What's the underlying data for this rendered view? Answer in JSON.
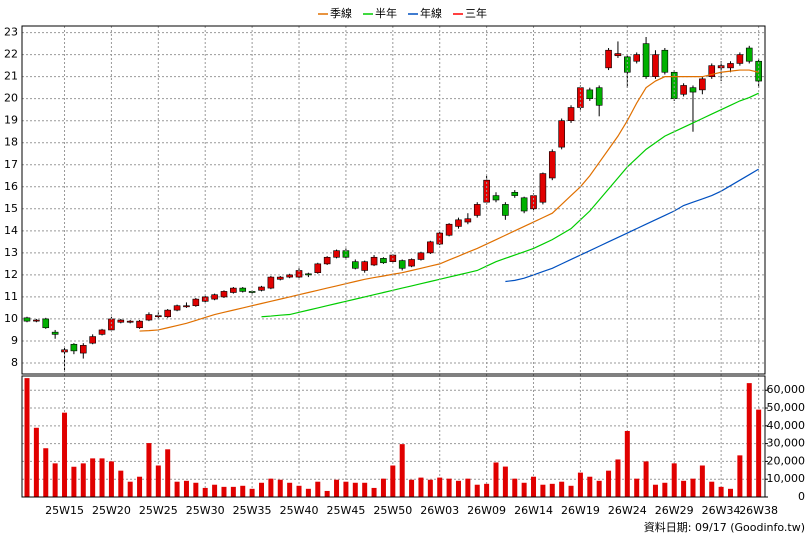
{
  "chart_data": [
    {
      "type": "candlestick",
      "open": [
        10.05,
        9.9,
        10.0,
        9.4,
        8.5,
        8.85,
        8.45,
        8.9,
        9.3,
        9.5,
        9.85,
        9.85,
        9.6,
        9.95,
        10.1,
        10.1,
        10.4,
        10.55,
        10.6,
        10.8,
        10.9,
        11.0,
        11.2,
        11.4,
        11.25,
        11.3,
        11.4,
        11.8,
        11.9,
        11.9,
        12.05,
        12.1,
        12.5,
        12.8,
        13.1,
        12.6,
        12.2,
        12.45,
        12.75,
        12.6,
        12.65,
        12.4,
        12.7,
        13.0,
        13.4,
        13.8,
        14.2,
        14.4,
        14.7,
        15.3,
        15.6,
        15.2,
        15.75,
        15.5,
        15.0,
        15.3,
        16.4,
        17.8,
        19.0,
        19.6,
        20.4,
        20.5,
        21.4,
        21.95,
        21.9,
        21.7,
        22.5,
        21.0,
        22.2,
        21.2,
        20.2,
        20.5,
        20.4,
        21.0,
        21.4,
        21.4,
        21.6,
        22.3,
        21.7
      ],
      "high": [
        10.1,
        10.0,
        10.05,
        9.5,
        8.7,
        8.9,
        8.9,
        9.3,
        9.55,
        10.1,
        10.0,
        9.95,
        9.95,
        10.3,
        10.3,
        10.45,
        10.65,
        10.75,
        10.95,
        11.05,
        11.15,
        11.3,
        11.45,
        11.45,
        11.3,
        11.5,
        11.95,
        11.95,
        12.05,
        12.3,
        12.1,
        12.55,
        12.85,
        13.15,
        13.2,
        12.7,
        12.65,
        12.9,
        12.8,
        12.95,
        12.7,
        12.75,
        13.05,
        13.55,
        13.95,
        14.35,
        14.6,
        14.8,
        15.3,
        16.5,
        15.75,
        15.3,
        15.85,
        15.55,
        15.7,
        16.65,
        17.7,
        19.1,
        19.7,
        20.6,
        20.5,
        20.6,
        22.3,
        22.6,
        22.0,
        22.1,
        22.8,
        22.2,
        22.3,
        21.3,
        20.7,
        20.6,
        21.0,
        21.6,
        21.7,
        21.7,
        22.1,
        22.4,
        21.8
      ],
      "low": [
        9.85,
        9.85,
        9.55,
        9.1,
        7.6,
        8.4,
        8.2,
        8.85,
        9.25,
        9.45,
        9.8,
        9.8,
        9.55,
        9.9,
        10.0,
        10.05,
        10.35,
        10.5,
        10.55,
        10.75,
        10.85,
        10.95,
        11.15,
        11.2,
        11.15,
        11.25,
        11.35,
        11.75,
        11.85,
        11.85,
        11.9,
        12.05,
        12.45,
        12.75,
        12.7,
        12.25,
        12.1,
        12.4,
        12.5,
        12.55,
        12.2,
        12.35,
        12.65,
        12.95,
        13.35,
        13.75,
        14.1,
        14.3,
        14.6,
        15.2,
        15.3,
        14.5,
        15.5,
        14.8,
        14.9,
        15.2,
        16.3,
        17.7,
        18.9,
        19.5,
        19.9,
        19.2,
        21.3,
        21.85,
        20.5,
        21.6,
        20.9,
        20.9,
        21.1,
        19.9,
        20.1,
        18.5,
        20.2,
        20.9,
        20.8,
        21.2,
        21.5,
        21.6,
        20.5
      ],
      "close": [
        9.9,
        9.95,
        9.6,
        9.3,
        8.6,
        8.55,
        8.8,
        9.2,
        9.5,
        10.0,
        9.95,
        9.9,
        9.9,
        10.2,
        10.15,
        10.4,
        10.6,
        10.6,
        10.9,
        11.0,
        11.1,
        11.25,
        11.4,
        11.25,
        11.2,
        11.45,
        11.9,
        11.9,
        12.0,
        12.2,
        12.0,
        12.5,
        12.8,
        13.1,
        12.8,
        12.3,
        12.6,
        12.8,
        12.55,
        12.9,
        12.3,
        12.7,
        13.0,
        13.5,
        13.9,
        14.3,
        14.5,
        14.55,
        15.2,
        16.3,
        15.4,
        14.7,
        15.6,
        14.9,
        15.6,
        16.6,
        17.6,
        19.0,
        19.6,
        20.5,
        20.0,
        19.7,
        22.2,
        22.05,
        21.2,
        22.0,
        21.0,
        22.0,
        21.2,
        20.0,
        20.6,
        20.3,
        20.9,
        21.5,
        21.5,
        21.6,
        22.0,
        21.7,
        20.8
      ],
      "up_color": "#e00000",
      "down_color": "#00b000",
      "series": [
        {
          "name": "季線",
          "color": "#e07000",
          "values": [
            null,
            null,
            null,
            null,
            null,
            null,
            null,
            null,
            null,
            null,
            null,
            null,
            9.45,
            9.47,
            9.5,
            9.6,
            9.7,
            9.8,
            9.93,
            10.07,
            10.2,
            10.3,
            10.4,
            10.5,
            10.6,
            10.7,
            10.8,
            10.9,
            11.0,
            11.1,
            11.2,
            11.3,
            11.4,
            11.5,
            11.6,
            11.7,
            11.8,
            11.88,
            11.95,
            12.03,
            12.1,
            12.2,
            12.3,
            12.4,
            12.5,
            12.68,
            12.85,
            13.03,
            13.2,
            13.4,
            13.6,
            13.8,
            14.0,
            14.2,
            14.4,
            14.6,
            14.8,
            15.2,
            15.6,
            16.0,
            16.5,
            17.1,
            17.7,
            18.3,
            19.0,
            19.8,
            20.5,
            20.8,
            21.0,
            21.0,
            21.0,
            21.0,
            21.0,
            21.1,
            21.2,
            21.25,
            21.3,
            21.3,
            21.2
          ]
        },
        {
          "name": "半年",
          "color": "#00cc00",
          "values": [
            null,
            null,
            null,
            null,
            null,
            null,
            null,
            null,
            null,
            null,
            null,
            null,
            null,
            null,
            null,
            null,
            null,
            null,
            null,
            null,
            null,
            null,
            null,
            null,
            null,
            10.1,
            10.13,
            10.17,
            10.2,
            10.3,
            10.4,
            10.5,
            10.6,
            10.7,
            10.8,
            10.9,
            11.0,
            11.1,
            11.2,
            11.3,
            11.4,
            11.5,
            11.6,
            11.7,
            11.8,
            11.9,
            12.0,
            12.1,
            12.2,
            12.4,
            12.6,
            12.75,
            12.9,
            13.05,
            13.2,
            13.4,
            13.6,
            13.85,
            14.1,
            14.5,
            14.9,
            15.4,
            15.9,
            16.4,
            16.9,
            17.3,
            17.7,
            18.0,
            18.3,
            18.5,
            18.7,
            18.9,
            19.1,
            19.3,
            19.5,
            19.7,
            19.9,
            20.05,
            20.25
          ]
        },
        {
          "name": "年線",
          "color": "#0050c0",
          "values": [
            null,
            null,
            null,
            null,
            null,
            null,
            null,
            null,
            null,
            null,
            null,
            null,
            null,
            null,
            null,
            null,
            null,
            null,
            null,
            null,
            null,
            null,
            null,
            null,
            null,
            null,
            null,
            null,
            null,
            null,
            null,
            null,
            null,
            null,
            null,
            null,
            null,
            null,
            null,
            null,
            null,
            null,
            null,
            null,
            null,
            null,
            null,
            null,
            null,
            null,
            null,
            11.7,
            11.75,
            11.85,
            12.0,
            12.15,
            12.3,
            12.5,
            12.7,
            12.9,
            13.1,
            13.3,
            13.5,
            13.7,
            13.9,
            14.1,
            14.3,
            14.5,
            14.7,
            14.9,
            15.15,
            15.3,
            15.45,
            15.6,
            15.8,
            16.05,
            16.3,
            16.55,
            16.8
          ]
        },
        {
          "name": "三年",
          "color": "#ff0000",
          "values": [
            null,
            null,
            null,
            null,
            null,
            null,
            null,
            null,
            null,
            null,
            null,
            null,
            null,
            null,
            null,
            null,
            null,
            null,
            null,
            null,
            null,
            null,
            null,
            null,
            null,
            null,
            null,
            null,
            null,
            null,
            null,
            null,
            null,
            null,
            null,
            null,
            null,
            null,
            null,
            null,
            null,
            null,
            null,
            null,
            null,
            null,
            null,
            null,
            null,
            null,
            null,
            null,
            null,
            null,
            null,
            null,
            null,
            null,
            null,
            null,
            null,
            null,
            null,
            null,
            null,
            null,
            null,
            null,
            null,
            null,
            null,
            null,
            null,
            null,
            null,
            null,
            null,
            null,
            null
          ]
        }
      ],
      "ylim": [
        7.5,
        23.3
      ],
      "yticks": [
        8,
        9,
        10,
        11,
        12,
        13,
        14,
        15,
        16,
        17,
        18,
        19,
        20,
        21,
        22,
        23
      ],
      "grid": true,
      "legend": "top"
    },
    {
      "type": "bar",
      "categories": [
        null,
        null,
        null,
        null,
        "25W15",
        null,
        null,
        null,
        null,
        "25W20",
        null,
        null,
        null,
        null,
        "25W25",
        null,
        null,
        null,
        null,
        "25W30",
        null,
        null,
        null,
        null,
        "25W35",
        null,
        null,
        null,
        null,
        "25W40",
        null,
        null,
        null,
        null,
        "25W45",
        null,
        null,
        null,
        null,
        "25W50",
        null,
        null,
        null,
        null,
        "26W03",
        null,
        null,
        null,
        null,
        "26W09",
        null,
        null,
        null,
        null,
        "26W14",
        null,
        null,
        null,
        null,
        "26W19",
        null,
        null,
        null,
        null,
        "26W24",
        null,
        null,
        null,
        null,
        "26W29",
        null,
        null,
        null,
        null,
        "26W34",
        null,
        null,
        null,
        "26W38"
      ],
      "values": [
        66800,
        38900,
        27400,
        18900,
        47400,
        17000,
        18900,
        21700,
        21700,
        20000,
        14800,
        8600,
        11400,
        30300,
        17700,
        26800,
        8600,
        9100,
        8000,
        5100,
        6900,
        5700,
        5700,
        6300,
        4600,
        8000,
        10300,
        9700,
        8000,
        6300,
        4600,
        8600,
        3400,
        9700,
        8600,
        8000,
        8000,
        5100,
        10300,
        17700,
        29700,
        9700,
        10900,
        9700,
        10900,
        10300,
        9100,
        10300,
        6900,
        7400,
        19400,
        17100,
        10300,
        8000,
        11400,
        6900,
        7400,
        8600,
        6300,
        13700,
        11400,
        9100,
        14800,
        21100,
        37100,
        10300,
        20000,
        6900,
        8000,
        18900,
        9100,
        10300,
        17700,
        8600,
        5700,
        4600,
        23400,
        64000,
        49100
      ],
      "color": "#e00000",
      "ylim": [
        0,
        68000
      ],
      "yticks": [
        0,
        {
          "value": 10000,
          "label": "10,000"
        },
        {
          "value": 20000,
          "label": "20,000"
        },
        {
          "value": 30000,
          "label": "30,000"
        },
        {
          "value": 40000,
          "label": "40,000"
        },
        {
          "value": 50000,
          "label": "50,000"
        },
        {
          "value": 60000,
          "label": "60,000"
        }
      ],
      "grid": true
    }
  ],
  "note": "資料日期: 09/17 (Goodinfo.tw)"
}
